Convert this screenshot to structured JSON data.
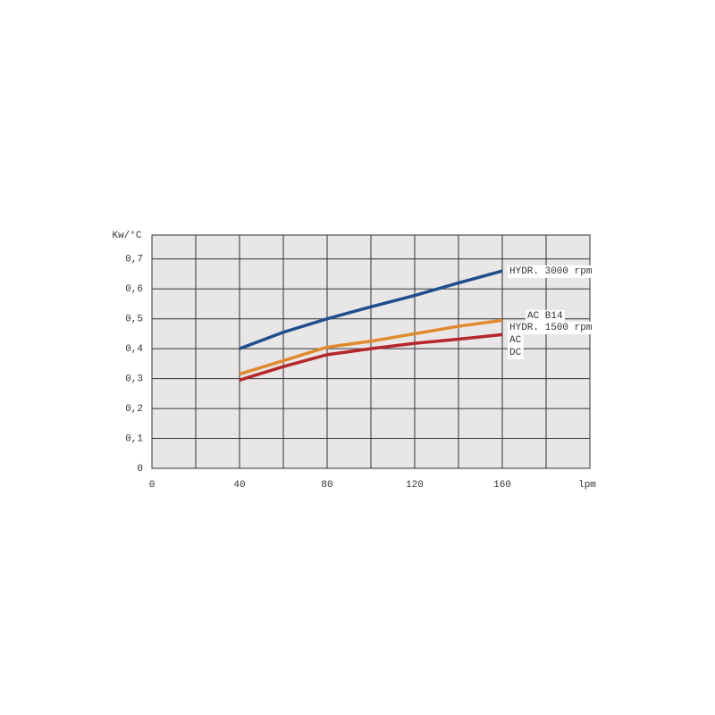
{
  "chart_data": {
    "type": "line",
    "y_label": "Kw/°C",
    "x_label": "lpm",
    "x": [
      40,
      60,
      80,
      100,
      120,
      140,
      160
    ],
    "series": [
      {
        "name_lines": [
          "HYDR. 3000 rpm"
        ],
        "color": "#1f4e8c",
        "values": [
          0.4,
          0.455,
          0.5,
          0.54,
          0.578,
          0.62,
          0.66
        ]
      },
      {
        "name_lines": [
          "AC B14",
          "HYDR. 1500 rpm"
        ],
        "color": "#e08a2e",
        "values": [
          0.315,
          0.36,
          0.405,
          0.425,
          0.45,
          0.475,
          0.495
        ]
      },
      {
        "name_lines": [
          "AC",
          "DC"
        ],
        "color": "#b5272a",
        "values": [
          0.295,
          0.34,
          0.38,
          0.4,
          0.418,
          0.432,
          0.447
        ]
      }
    ],
    "xlim": [
      0,
      200
    ],
    "xticks": [
      0,
      40,
      80,
      120,
      160
    ],
    "xgrid": [
      20,
      40,
      60,
      80,
      100,
      120,
      140,
      160,
      180
    ],
    "ylim": [
      0,
      0.78
    ],
    "yticks": [
      0,
      {
        "value": 0.1,
        "label": "0,1"
      },
      {
        "value": 0.2,
        "label": "0,2"
      },
      {
        "value": 0.3,
        "label": "0,3"
      },
      {
        "value": 0.4,
        "label": "0,4"
      },
      {
        "value": 0.5,
        "label": "0,5"
      },
      {
        "value": 0.6,
        "label": "0,6"
      },
      {
        "value": 0.7,
        "label": "0,7"
      }
    ],
    "grid": true
  }
}
